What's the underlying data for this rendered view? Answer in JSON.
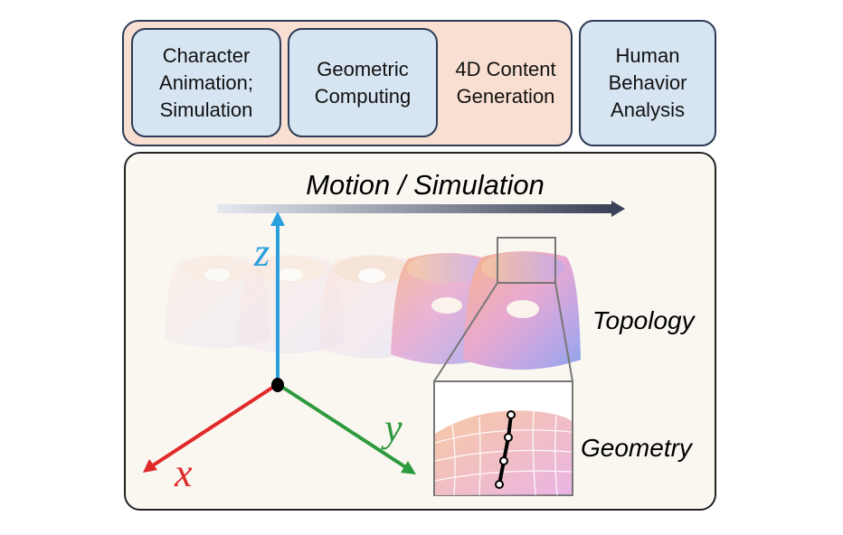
{
  "top_row": {
    "box1_label_line1": "Character",
    "box1_label_line2": "Animation;",
    "box1_label_line3": "Simulation",
    "box2_label_line1": "Geometric",
    "box2_label_line2": "Computing",
    "box3_label_line1": "4D Content",
    "box3_label_line2": "Generation",
    "box4_label_line1": "Human",
    "box4_label_line2": "Behavior",
    "box4_label_line3": "Analysis"
  },
  "diagram": {
    "arrow_label": "Motion / Simulation",
    "axis_z": "z",
    "axis_x": "x",
    "axis_y": "y",
    "topology_label": "Topology",
    "geometry_label": "Geometry",
    "colors": {
      "z_axis": "#2a9fde",
      "x_axis": "#e02a2a",
      "y_axis": "#2e9a3e",
      "panel_border": "#2c3a55"
    }
  }
}
